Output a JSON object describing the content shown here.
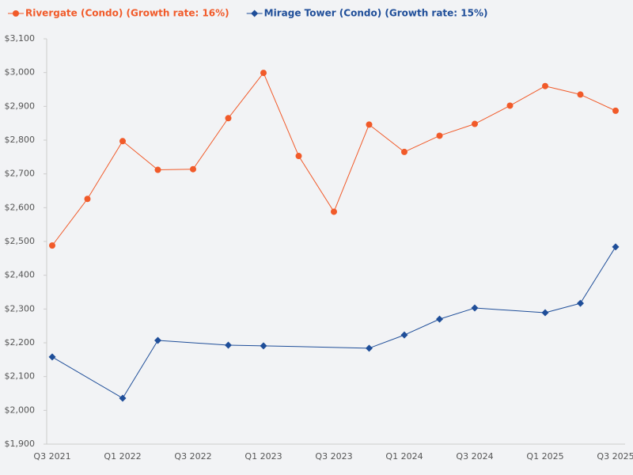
{
  "chart_data": {
    "type": "line",
    "categories": [
      "Q3 2021",
      null,
      "Q1 2022",
      null,
      "Q3 2022",
      null,
      "Q1 2023",
      null,
      "Q3 2023",
      null,
      "Q1 2024",
      null,
      "Q3 2024",
      null,
      "Q1 2025",
      null,
      "Q3 2025"
    ],
    "series": [
      {
        "name": "Rivergate (Condo) (Growth rate: 16%)",
        "color": "#f15a29",
        "marker": "circle",
        "values": [
          2488,
          2626,
          2797,
          2712,
          2714,
          2865,
          2999,
          2753,
          2588,
          2846,
          2765,
          2813,
          2848,
          2902,
          2960,
          2935,
          2887
        ]
      },
      {
        "name": "Mirage Tower (Condo) (Growth rate: 15%)",
        "color": "#1f4e99",
        "marker": "diamond",
        "values": [
          2158,
          null,
          2036,
          2207,
          null,
          2193,
          2191,
          null,
          null,
          2184,
          2223,
          2270,
          2303,
          null,
          2289,
          2317,
          2484
        ]
      }
    ],
    "connect_gaps": true,
    "ylim": [
      1900,
      3100
    ],
    "yticks": [
      {
        "value": 1900,
        "label": "$1,900"
      },
      {
        "value": 2000,
        "label": "$2,000"
      },
      {
        "value": 2100,
        "label": "$2,100"
      },
      {
        "value": 2200,
        "label": "$2,200"
      },
      {
        "value": 2300,
        "label": "$2,300"
      },
      {
        "value": 2400,
        "label": "$2,400"
      },
      {
        "value": 2500,
        "label": "$2,500"
      },
      {
        "value": 2600,
        "label": "$2,600"
      },
      {
        "value": 2700,
        "label": "$2,700"
      },
      {
        "value": 2800,
        "label": "$2,800"
      },
      {
        "value": 2900,
        "label": "$2,900"
      },
      {
        "value": 3000,
        "label": "$3,000"
      },
      {
        "value": 3100,
        "label": "$3,100"
      }
    ],
    "grid": false
  }
}
